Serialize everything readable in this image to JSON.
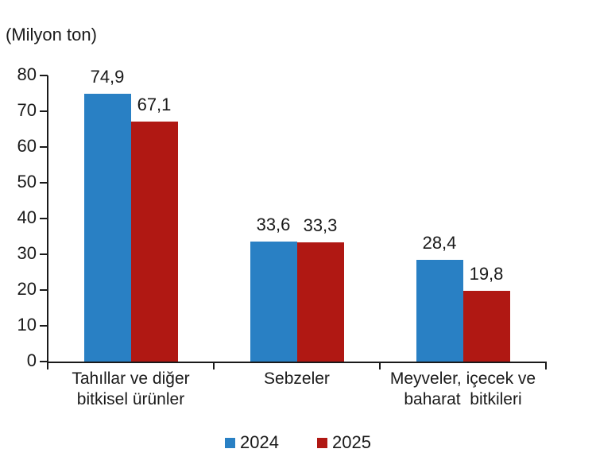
{
  "chart_data": {
    "type": "bar",
    "title": "",
    "unit": "(Milyon ton)",
    "xlabel": "",
    "ylabel": "",
    "categories": [
      "Tahıllar ve diğer bitkisel ürünler",
      "Sebzeler",
      "Meyveler, içecek ve baharat bitkileri"
    ],
    "categories_lines": [
      [
        "Tahıllar ve diğer",
        "bitkisel ürünler"
      ],
      [
        "Sebzeler"
      ],
      [
        "Meyveler, içecek ve",
        "baharat  bitkileri"
      ]
    ],
    "series": [
      {
        "name": "2024",
        "color": "#2980c4",
        "values": [
          74.9,
          33.6,
          28.4
        ],
        "labels": [
          "74,9",
          "33,6",
          "28,4"
        ]
      },
      {
        "name": "2025",
        "color": "#b01813",
        "values": [
          67.1,
          33.3,
          19.8
        ],
        "labels": [
          "67,1",
          "33,3",
          "19,8"
        ]
      }
    ],
    "ylim": [
      0,
      80
    ],
    "yticks": [
      0,
      10,
      20,
      30,
      40,
      50,
      60,
      70,
      80
    ],
    "ytick_step": 10,
    "grid": false,
    "legend_position": "bottom",
    "axis_color": "#1a1a1a",
    "text_color": "#1a1a1a",
    "background_color": "#ffffff"
  }
}
